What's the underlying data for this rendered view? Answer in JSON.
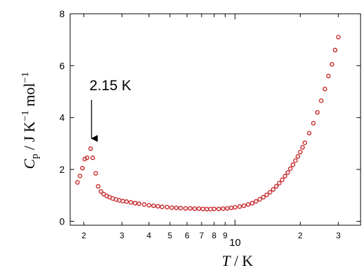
{
  "chart_data": {
    "type": "scatter",
    "xlabel": [
      "T",
      " / K"
    ],
    "ylabel": [
      "C",
      "p",
      " / J K",
      "−1",
      " mol",
      "−1"
    ],
    "annotation": "2.15 K",
    "log_x": true,
    "color": "#c8262a",
    "xlim": [
      1.73,
      38
    ],
    "ylim": [
      -0.15,
      8
    ],
    "xticks": [
      2,
      3,
      4,
      5,
      6,
      7,
      8,
      9,
      10,
      {
        "value": 20,
        "label": "2"
      },
      {
        "value": 30,
        "label": "3"
      }
    ],
    "yticks": [
      0,
      2,
      4,
      6,
      8
    ],
    "x": [
      1.87,
      1.92,
      1.97,
      2.02,
      2.07,
      2.15,
      2.2,
      2.27,
      2.33,
      2.4,
      2.47,
      2.55,
      2.63,
      2.72,
      2.82,
      2.92,
      3.03,
      3.15,
      3.3,
      3.45,
      3.6,
      3.8,
      4.0,
      4.2,
      4.4,
      4.6,
      4.85,
      5.1,
      5.35,
      5.6,
      5.9,
      6.2,
      6.5,
      6.8,
      7.1,
      7.4,
      7.7,
      8.0,
      8.4,
      8.8,
      9.2,
      9.6,
      10.0,
      10.5,
      11.0,
      11.5,
      12.0,
      12.5,
      13.0,
      13.5,
      14.0,
      14.5,
      15.0,
      15.5,
      16.0,
      16.5,
      17.0,
      17.5,
      18.0,
      18.5,
      19.0,
      19.5,
      20.0,
      20.5,
      21.0,
      22,
      23,
      24,
      25,
      26,
      27,
      28,
      29,
      30
    ],
    "values": [
      1.5,
      1.75,
      2.05,
      2.4,
      2.45,
      2.8,
      2.45,
      1.85,
      1.35,
      1.15,
      1.05,
      0.98,
      0.93,
      0.88,
      0.84,
      0.81,
      0.78,
      0.76,
      0.73,
      0.7,
      0.68,
      0.65,
      0.62,
      0.6,
      0.58,
      0.56,
      0.55,
      0.53,
      0.52,
      0.51,
      0.5,
      0.5,
      0.49,
      0.49,
      0.48,
      0.47,
      0.47,
      0.48,
      0.48,
      0.49,
      0.5,
      0.52,
      0.54,
      0.57,
      0.6,
      0.65,
      0.7,
      0.77,
      0.85,
      0.93,
      1.02,
      1.12,
      1.23,
      1.35,
      1.47,
      1.6,
      1.74,
      1.88,
      2.03,
      2.18,
      2.34,
      2.5,
      2.67,
      2.85,
      3.03,
      3.4,
      3.78,
      4.2,
      4.65,
      5.1,
      5.6,
      6.05,
      6.6,
      7.1
    ]
  }
}
